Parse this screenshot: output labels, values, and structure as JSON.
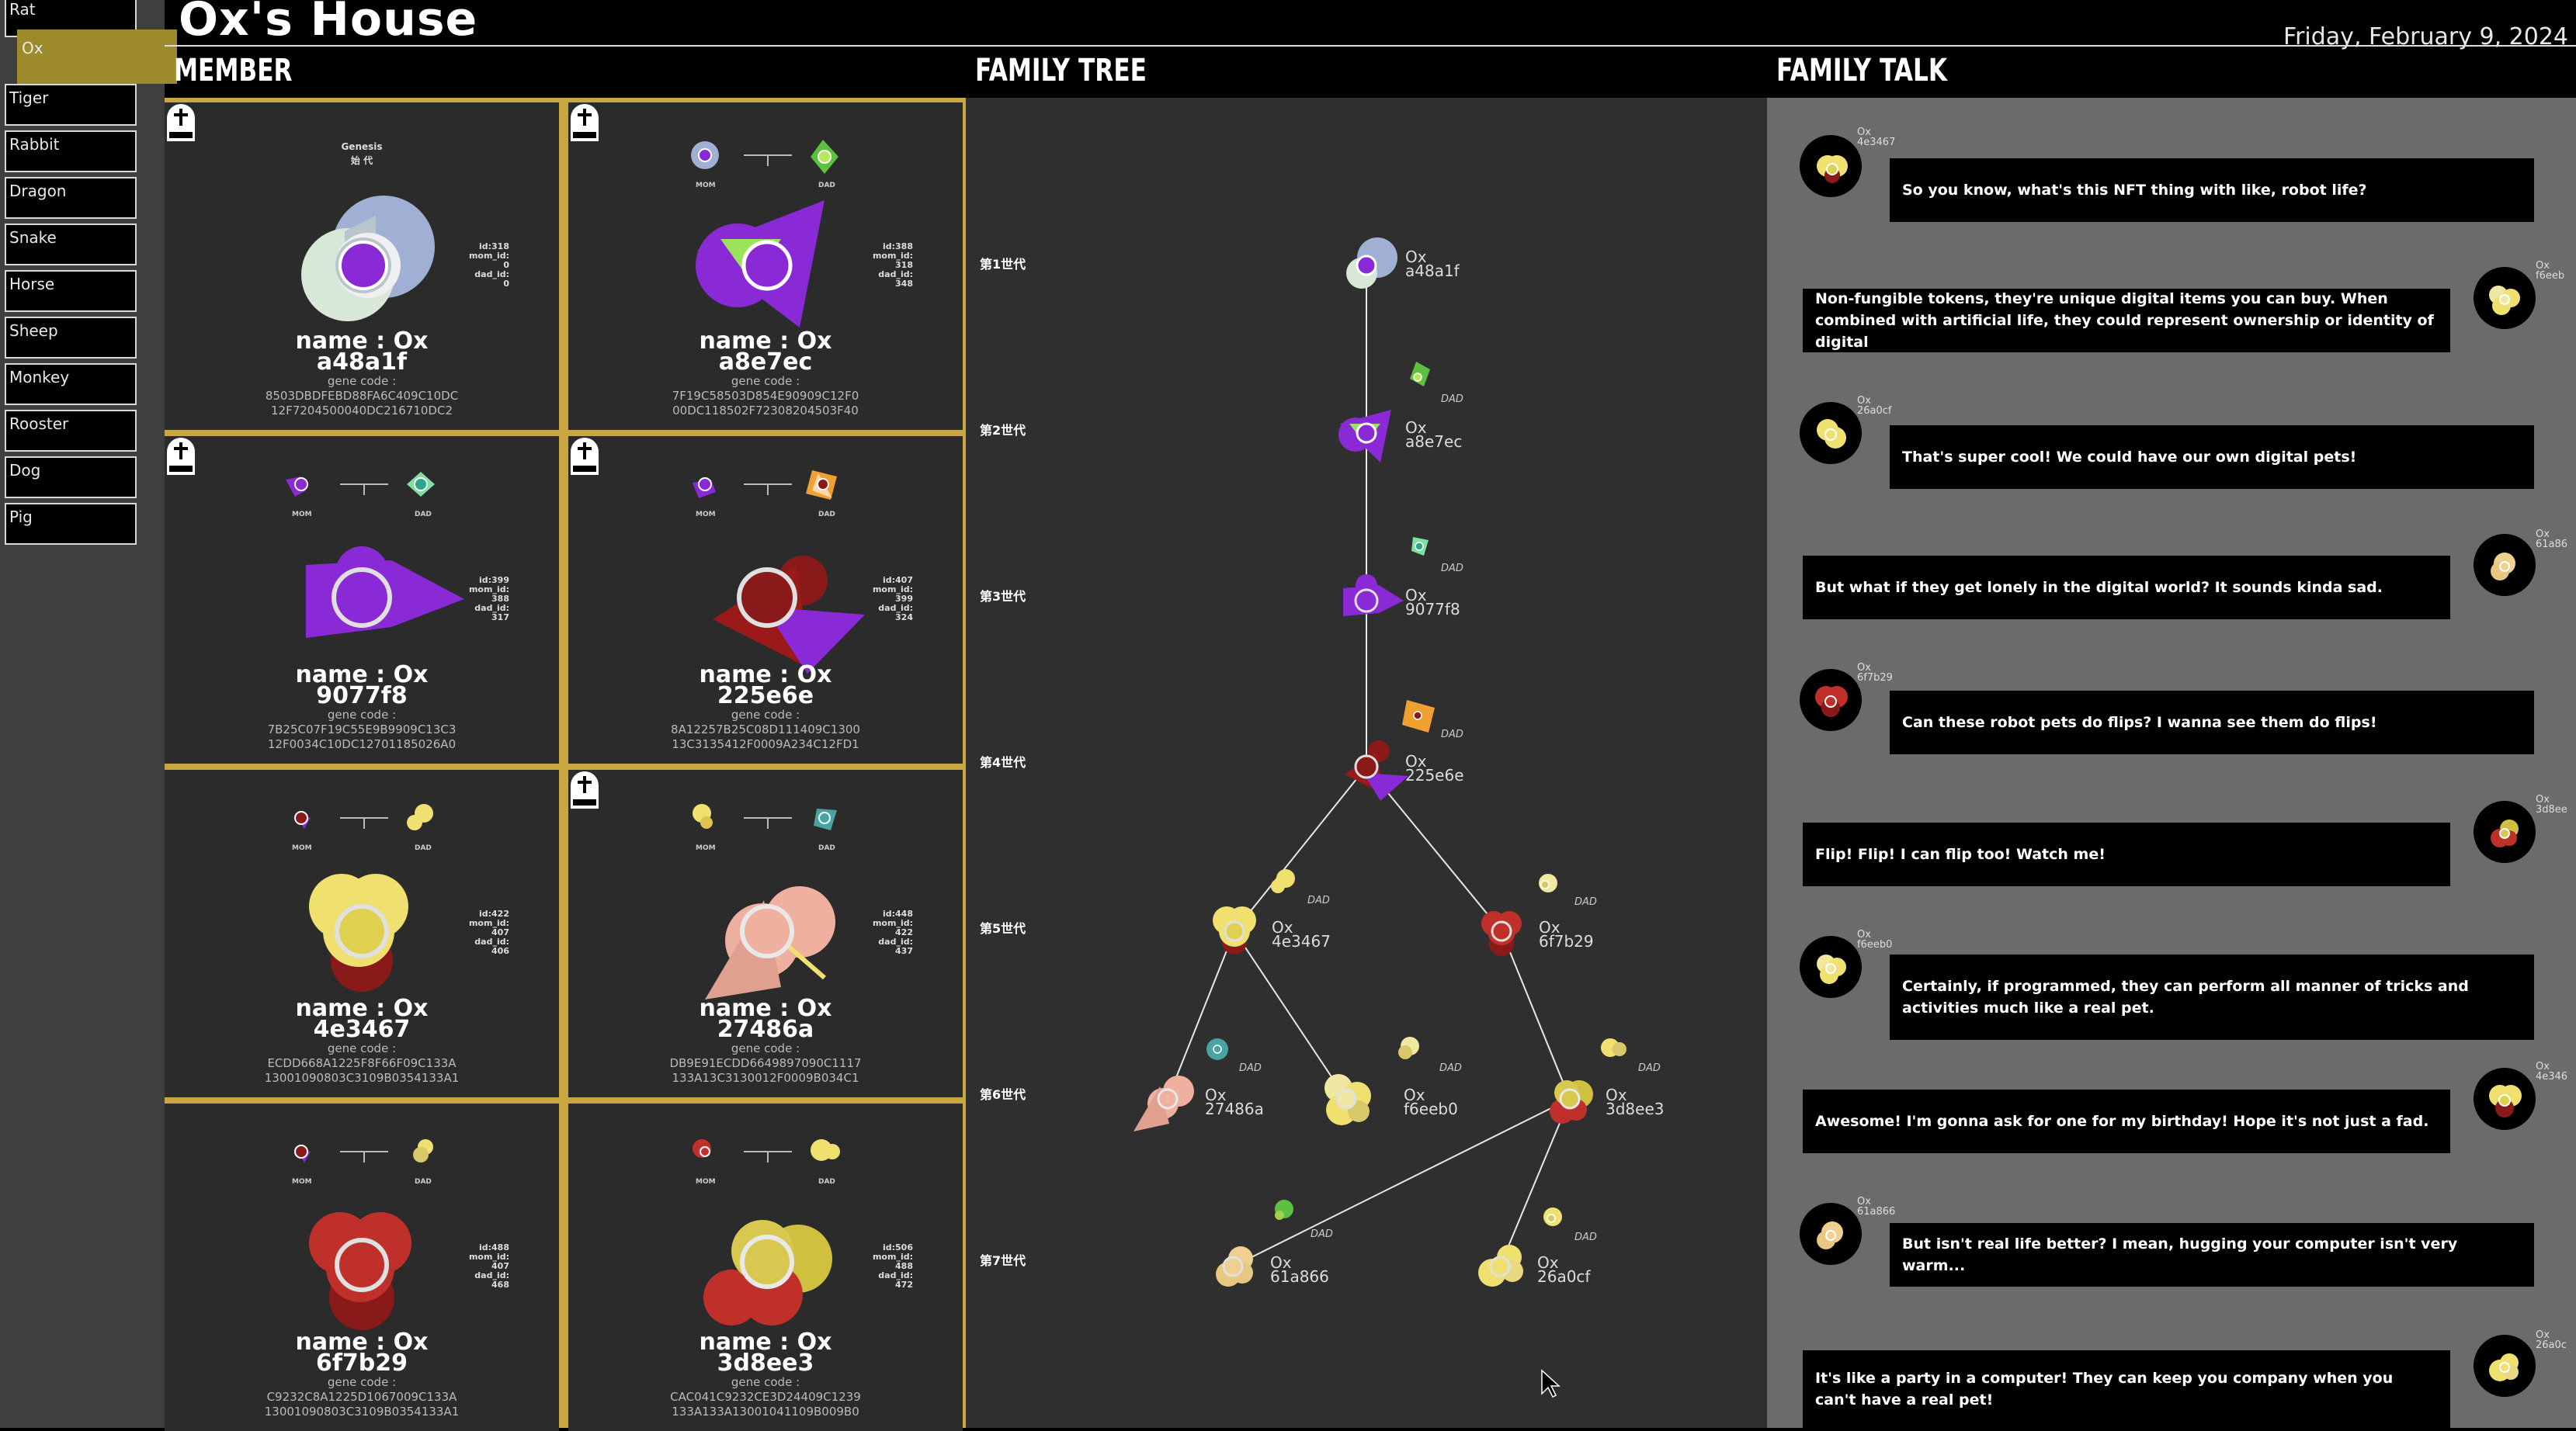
{
  "app_title": "Ox's House",
  "date": "Friday, February 9, 2024",
  "sidebar": {
    "items": [
      {
        "label": "Rat",
        "active": false
      },
      {
        "label": "Ox",
        "active": true
      },
      {
        "label": "Tiger",
        "active": false
      },
      {
        "label": "Rabbit",
        "active": false
      },
      {
        "label": "Dragon",
        "active": false
      },
      {
        "label": "Snake",
        "active": false
      },
      {
        "label": "Horse",
        "active": false
      },
      {
        "label": "Sheep",
        "active": false
      },
      {
        "label": "Monkey",
        "active": false
      },
      {
        "label": "Rooster",
        "active": false
      },
      {
        "label": "Dog",
        "active": false
      },
      {
        "label": "Pig",
        "active": false
      }
    ]
  },
  "sections": {
    "member": "MEMBER",
    "family_tree": "FAMILY TREE",
    "family_talk": "FAMILY TALK"
  },
  "member_labels": {
    "mom": "MOM",
    "dad": "DAD",
    "gene_code": "gene code :",
    "genesis": "Genesis",
    "genesis_jp": "始 代",
    "rip": "RIP"
  },
  "members": [
    {
      "name": "name : Ox",
      "id_hex": "a48a1f",
      "ids": "id:318\nmom_id:\n0\ndad_id:\n0",
      "gene": [
        "8503DBDFEBD88FA6C409C10DC",
        "12F7204500040DC216710DC2"
      ],
      "genesis": true,
      "rip": true
    },
    {
      "name": "name : Ox",
      "id_hex": "a8e7ec",
      "ids": "id:388\nmom_id:\n318\ndad_id:\n348",
      "gene": [
        "7F19C58503D854E90909C12F0",
        "00DC118502F72308204503F40"
      ],
      "genesis": false,
      "rip": true
    },
    {
      "name": "name : Ox",
      "id_hex": "9077f8",
      "ids": "id:399\nmom_id:\n388\ndad_id:\n317",
      "gene": [
        "7B25C07F19C55E9B9909C13C3",
        "12F0034C10DC12701185026A0"
      ],
      "genesis": false,
      "rip": true
    },
    {
      "name": "name : Ox",
      "id_hex": "225e6e",
      "ids": "id:407\nmom_id:\n399\ndad_id:\n324",
      "gene": [
        "8A12257B25C08D111409C1300",
        "13C3135412F0009A234C12FD1"
      ],
      "genesis": false,
      "rip": true
    },
    {
      "name": "name : Ox",
      "id_hex": "4e3467",
      "ids": "id:422\nmom_id:\n407\ndad_id:\n406",
      "gene": [
        "ECDD668A1225F8F66F09C133A",
        "13001090803C3109B0354133A1"
      ],
      "genesis": false,
      "rip": false
    },
    {
      "name": "name : Ox",
      "id_hex": "27486a",
      "ids": "id:448\nmom_id:\n422\ndad_id:\n437",
      "gene": [
        "DB9E91ECDD6649897090C1117",
        "133A13C3130012F0009B034C1"
      ],
      "genesis": false,
      "rip": true
    },
    {
      "name": "name : Ox",
      "id_hex": "6f7b29",
      "ids": "id:488\nmom_id:\n407\ndad_id:\n468",
      "gene": [
        "C9232C8A1225D1067009C133A",
        "13001090803C3109B0354133A1"
      ],
      "genesis": false,
      "rip": false
    },
    {
      "name": "name : Ox",
      "id_hex": "3d8ee3",
      "ids": "id:506\nmom_id:\n488\ndad_id:\n472",
      "gene": [
        "CAC041C9232CE3D24409C1239",
        "133A133A13001041109B009B0"
      ],
      "genesis": false,
      "rip": false
    }
  ],
  "tree": {
    "generations": [
      "第1世代",
      "第2世代",
      "第3世代",
      "第4世代",
      "第5世代",
      "第6世代",
      "第7世代"
    ],
    "nodes": [
      {
        "label": "Ox",
        "id": "a48a1f"
      },
      {
        "label": "Ox",
        "id": "a8e7ec"
      },
      {
        "label": "Ox",
        "id": "9077f8"
      },
      {
        "label": "Ox",
        "id": "225e6e"
      },
      {
        "label": "Ox",
        "id": "4e3467"
      },
      {
        "label": "Ox",
        "id": "6f7b29"
      },
      {
        "label": "Ox",
        "id": "27486a"
      },
      {
        "label": "Ox",
        "id": "f6eeb0"
      },
      {
        "label": "Ox",
        "id": "3d8ee3"
      },
      {
        "label": "Ox",
        "id": "61a866"
      },
      {
        "label": "Ox",
        "id": "26a0cf"
      }
    ],
    "dad_tag": "DAD"
  },
  "talk": [
    {
      "side": "left",
      "sender": "Ox\n4e3467",
      "text": "So you know, what's this NFT thing with like, robot life?"
    },
    {
      "side": "right",
      "sender": "Ox\nf6eeb",
      "text": "Non-fungible tokens, they're unique digital items you can buy. When combined with artificial life, they could represent ownership or identity of digital"
    },
    {
      "side": "left",
      "sender": "Ox\n26a0cf",
      "text": "That's super cool! We could have our own digital pets!"
    },
    {
      "side": "right",
      "sender": "Ox\n61a86",
      "text": "But what if they get lonely in the digital world? It sounds kinda sad."
    },
    {
      "side": "left",
      "sender": "Ox\n6f7b29",
      "text": "Can these robot pets do flips? I wanna see them do flips!"
    },
    {
      "side": "right",
      "sender": "Ox\n3d8ee",
      "text": "Flip! Flip! I can flip too! Watch me!"
    },
    {
      "side": "left",
      "sender": "Ox\nf6eeb0",
      "text": "Certainly, if programmed, they can perform all manner of tricks and activities much like a real pet."
    },
    {
      "side": "right",
      "sender": "Ox\n4e346",
      "text": "Awesome! I'm gonna ask for one for my birthday! Hope it's not just a fad."
    },
    {
      "side": "left",
      "sender": "Ox\n61a866",
      "text": "But isn't real life better? I mean, hugging your computer isn't very warm..."
    },
    {
      "side": "right",
      "sender": "Ox\n26a0c",
      "text": "It's like a party in a computer! They can keep you company when you can't have a real pet!"
    }
  ]
}
